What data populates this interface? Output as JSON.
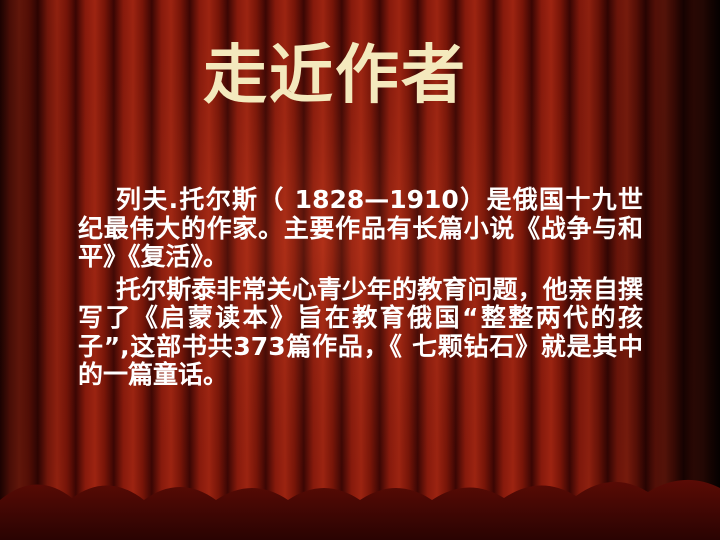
{
  "slide": {
    "title": "走近作者",
    "paragraphs": [
      "列夫.托尔斯（ 1828—1910）是俄国十九世纪最伟大的作家。主要作品有长篇小说《战争与和平》《复活》。",
      "托尔斯泰非常关心青少年的教育问题，他亲自撰写了《启蒙读本》旨在教育俄国“整整两代的孩子”,这部书共373篇作品，《 七颗钻石》就是其中的一篇童话。"
    ]
  },
  "colors": {
    "background": "#2a0202",
    "curtain_red": "#7a1208",
    "title_text": "#f4e9bd",
    "body_text": "#ffffff"
  }
}
